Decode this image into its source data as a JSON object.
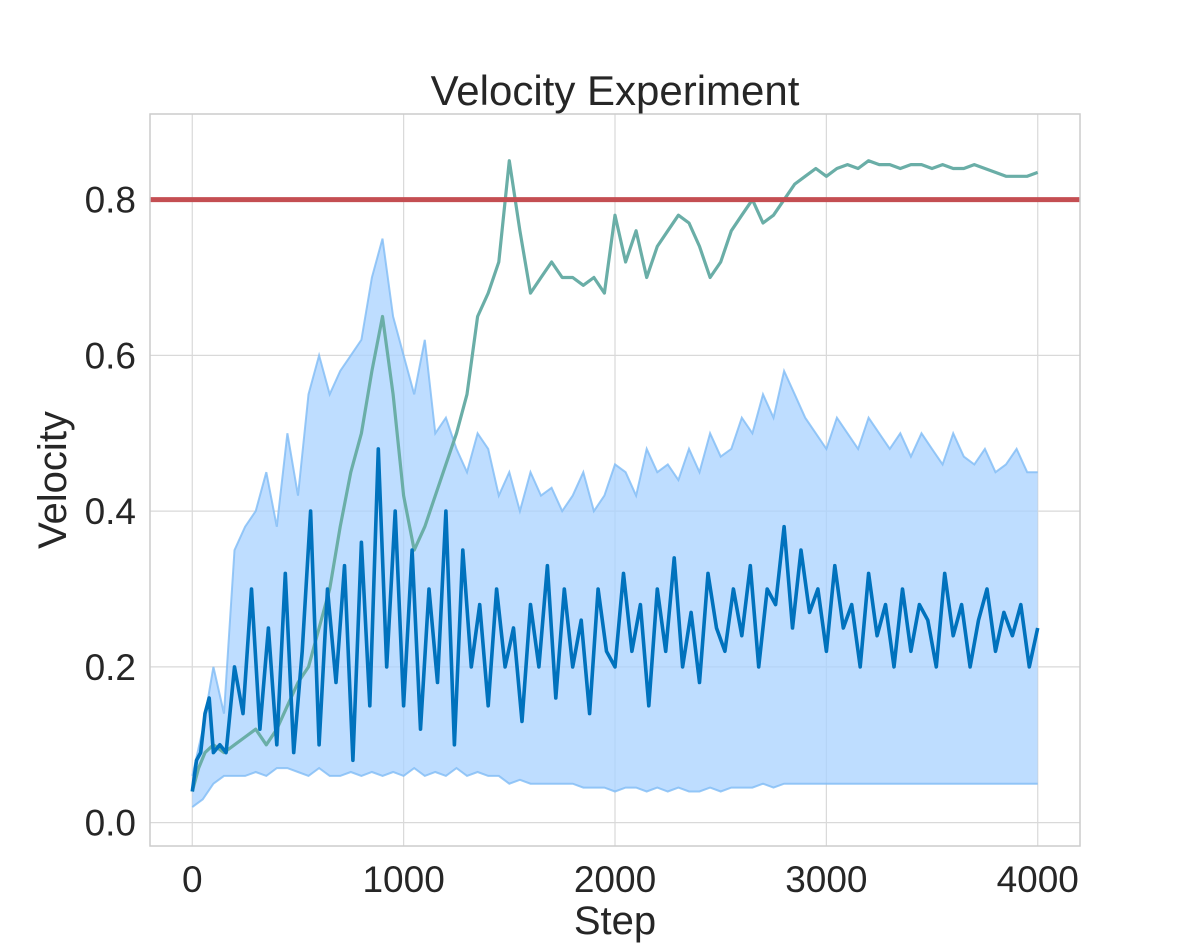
{
  "chart_data": {
    "type": "line",
    "title": "Velocity Experiment",
    "xlabel": "Step",
    "ylabel": "Velocity",
    "xlim": [
      -200,
      4200
    ],
    "ylim": [
      -0.03,
      0.91
    ],
    "xticks": [
      0,
      1000,
      2000,
      3000,
      4000
    ],
    "yticks": [
      0.0,
      0.2,
      0.4,
      0.6,
      0.8
    ],
    "xtick_labels": [
      "0",
      "1000",
      "2000",
      "3000",
      "4000"
    ],
    "ytick_labels": [
      "0.0",
      "0.2",
      "0.4",
      "0.6",
      "0.8"
    ],
    "grid": true,
    "legend": "none",
    "colors": {
      "threshold": "#c44e52",
      "teal": "#6aaea7",
      "band": "#a8d2ff",
      "band_line": "#7fbcf5",
      "blue": "#0072bd",
      "grid": "#d9d9d9",
      "frame": "#cccccc"
    },
    "threshold": {
      "y": 0.8
    },
    "series": [
      {
        "role": "teal-mean",
        "x": [
          0,
          30,
          60,
          100,
          150,
          200,
          250,
          300,
          350,
          400,
          450,
          500,
          550,
          600,
          650,
          700,
          750,
          800,
          850,
          900,
          950,
          1000,
          1050,
          1100,
          1150,
          1200,
          1250,
          1300,
          1350,
          1400,
          1450,
          1500,
          1550,
          1600,
          1650,
          1700,
          1750,
          1800,
          1850,
          1900,
          1950,
          2000,
          2050,
          2100,
          2150,
          2200,
          2250,
          2300,
          2350,
          2400,
          2450,
          2500,
          2550,
          2600,
          2650,
          2700,
          2750,
          2800,
          2850,
          2900,
          2950,
          3000,
          3050,
          3100,
          3150,
          3200,
          3250,
          3300,
          3350,
          3400,
          3450,
          3500,
          3550,
          3600,
          3650,
          3700,
          3750,
          3800,
          3850,
          3900,
          3950,
          4000
        ],
        "values": [
          0.04,
          0.07,
          0.09,
          0.1,
          0.09,
          0.1,
          0.11,
          0.12,
          0.1,
          0.12,
          0.15,
          0.18,
          0.2,
          0.25,
          0.3,
          0.38,
          0.45,
          0.5,
          0.58,
          0.65,
          0.55,
          0.42,
          0.35,
          0.38,
          0.42,
          0.46,
          0.5,
          0.55,
          0.65,
          0.68,
          0.72,
          0.85,
          0.76,
          0.68,
          0.7,
          0.72,
          0.7,
          0.7,
          0.69,
          0.7,
          0.68,
          0.78,
          0.72,
          0.76,
          0.7,
          0.74,
          0.76,
          0.78,
          0.77,
          0.74,
          0.7,
          0.72,
          0.76,
          0.78,
          0.8,
          0.77,
          0.78,
          0.8,
          0.82,
          0.83,
          0.84,
          0.83,
          0.84,
          0.845,
          0.84,
          0.85,
          0.845,
          0.845,
          0.84,
          0.845,
          0.845,
          0.84,
          0.845,
          0.84,
          0.84,
          0.845,
          0.84,
          0.835,
          0.83,
          0.83,
          0.83,
          0.835
        ]
      },
      {
        "role": "blue-mean",
        "x": [
          0,
          20,
          40,
          60,
          80,
          100,
          130,
          160,
          200,
          240,
          280,
          320,
          360,
          400,
          440,
          480,
          520,
          560,
          600,
          640,
          680,
          720,
          760,
          800,
          840,
          880,
          920,
          960,
          1000,
          1040,
          1080,
          1120,
          1160,
          1200,
          1240,
          1280,
          1320,
          1360,
          1400,
          1440,
          1480,
          1520,
          1560,
          1600,
          1640,
          1680,
          1720,
          1760,
          1800,
          1840,
          1880,
          1920,
          1960,
          2000,
          2040,
          2080,
          2120,
          2160,
          2200,
          2240,
          2280,
          2320,
          2360,
          2400,
          2440,
          2480,
          2520,
          2560,
          2600,
          2640,
          2680,
          2720,
          2760,
          2800,
          2840,
          2880,
          2920,
          2960,
          3000,
          3040,
          3080,
          3120,
          3160,
          3200,
          3240,
          3280,
          3320,
          3360,
          3400,
          3440,
          3480,
          3520,
          3560,
          3600,
          3640,
          3680,
          3720,
          3760,
          3800,
          3840,
          3880,
          3920,
          3960,
          4000
        ],
        "values": [
          0.04,
          0.08,
          0.09,
          0.14,
          0.16,
          0.09,
          0.1,
          0.09,
          0.2,
          0.14,
          0.3,
          0.12,
          0.25,
          0.1,
          0.32,
          0.09,
          0.22,
          0.4,
          0.1,
          0.3,
          0.18,
          0.33,
          0.08,
          0.36,
          0.15,
          0.48,
          0.2,
          0.4,
          0.15,
          0.35,
          0.12,
          0.3,
          0.18,
          0.4,
          0.1,
          0.35,
          0.2,
          0.28,
          0.15,
          0.3,
          0.2,
          0.25,
          0.13,
          0.28,
          0.2,
          0.33,
          0.16,
          0.3,
          0.2,
          0.26,
          0.14,
          0.3,
          0.22,
          0.2,
          0.32,
          0.22,
          0.28,
          0.15,
          0.3,
          0.22,
          0.34,
          0.2,
          0.27,
          0.18,
          0.32,
          0.25,
          0.22,
          0.3,
          0.24,
          0.33,
          0.2,
          0.3,
          0.28,
          0.38,
          0.25,
          0.35,
          0.27,
          0.3,
          0.22,
          0.33,
          0.25,
          0.28,
          0.2,
          0.32,
          0.24,
          0.28,
          0.2,
          0.3,
          0.22,
          0.28,
          0.26,
          0.2,
          0.32,
          0.24,
          0.28,
          0.2,
          0.26,
          0.3,
          0.22,
          0.27,
          0.24,
          0.28,
          0.2,
          0.25
        ]
      },
      {
        "role": "blue-band-upper",
        "x": [
          0,
          50,
          100,
          150,
          200,
          250,
          300,
          350,
          400,
          450,
          500,
          550,
          600,
          650,
          700,
          750,
          800,
          850,
          900,
          950,
          1000,
          1050,
          1100,
          1150,
          1200,
          1250,
          1300,
          1350,
          1400,
          1450,
          1500,
          1550,
          1600,
          1650,
          1700,
          1750,
          1800,
          1850,
          1900,
          1950,
          2000,
          2050,
          2100,
          2150,
          2200,
          2250,
          2300,
          2350,
          2400,
          2450,
          2500,
          2550,
          2600,
          2650,
          2700,
          2750,
          2800,
          2850,
          2900,
          2950,
          3000,
          3050,
          3100,
          3150,
          3200,
          3250,
          3300,
          3350,
          3400,
          3450,
          3500,
          3550,
          3600,
          3650,
          3700,
          3750,
          3800,
          3850,
          3900,
          3950,
          4000
        ],
        "values": [
          0.06,
          0.12,
          0.2,
          0.14,
          0.35,
          0.38,
          0.4,
          0.45,
          0.38,
          0.5,
          0.42,
          0.55,
          0.6,
          0.55,
          0.58,
          0.6,
          0.62,
          0.7,
          0.75,
          0.65,
          0.6,
          0.55,
          0.62,
          0.5,
          0.52,
          0.48,
          0.45,
          0.5,
          0.48,
          0.42,
          0.45,
          0.4,
          0.45,
          0.42,
          0.43,
          0.4,
          0.42,
          0.45,
          0.4,
          0.42,
          0.46,
          0.45,
          0.42,
          0.48,
          0.45,
          0.46,
          0.44,
          0.48,
          0.45,
          0.5,
          0.47,
          0.48,
          0.52,
          0.5,
          0.55,
          0.52,
          0.58,
          0.55,
          0.52,
          0.5,
          0.48,
          0.52,
          0.5,
          0.48,
          0.52,
          0.5,
          0.48,
          0.5,
          0.47,
          0.5,
          0.48,
          0.46,
          0.5,
          0.47,
          0.46,
          0.48,
          0.45,
          0.46,
          0.48,
          0.45,
          0.45
        ]
      },
      {
        "role": "blue-band-lower",
        "x": [
          0,
          50,
          100,
          150,
          200,
          250,
          300,
          350,
          400,
          450,
          500,
          550,
          600,
          650,
          700,
          750,
          800,
          850,
          900,
          950,
          1000,
          1050,
          1100,
          1150,
          1200,
          1250,
          1300,
          1350,
          1400,
          1450,
          1500,
          1550,
          1600,
          1650,
          1700,
          1750,
          1800,
          1850,
          1900,
          1950,
          2000,
          2050,
          2100,
          2150,
          2200,
          2250,
          2300,
          2350,
          2400,
          2450,
          2500,
          2550,
          2600,
          2650,
          2700,
          2750,
          2800,
          2850,
          2900,
          2950,
          3000,
          3050,
          3100,
          3150,
          3200,
          3250,
          3300,
          3350,
          3400,
          3450,
          3500,
          3550,
          3600,
          3650,
          3700,
          3750,
          3800,
          3850,
          3900,
          3950,
          4000
        ],
        "values": [
          0.02,
          0.03,
          0.05,
          0.06,
          0.06,
          0.06,
          0.065,
          0.06,
          0.07,
          0.07,
          0.065,
          0.06,
          0.07,
          0.06,
          0.06,
          0.065,
          0.06,
          0.065,
          0.06,
          0.065,
          0.06,
          0.07,
          0.06,
          0.065,
          0.06,
          0.07,
          0.06,
          0.065,
          0.06,
          0.06,
          0.05,
          0.055,
          0.05,
          0.05,
          0.05,
          0.05,
          0.05,
          0.045,
          0.045,
          0.045,
          0.04,
          0.045,
          0.045,
          0.04,
          0.045,
          0.04,
          0.045,
          0.04,
          0.04,
          0.045,
          0.04,
          0.045,
          0.045,
          0.045,
          0.05,
          0.045,
          0.05,
          0.05,
          0.05,
          0.05,
          0.05,
          0.05,
          0.05,
          0.05,
          0.05,
          0.05,
          0.05,
          0.05,
          0.05,
          0.05,
          0.05,
          0.05,
          0.05,
          0.05,
          0.05,
          0.05,
          0.05,
          0.05,
          0.05,
          0.05,
          0.05
        ]
      }
    ]
  }
}
